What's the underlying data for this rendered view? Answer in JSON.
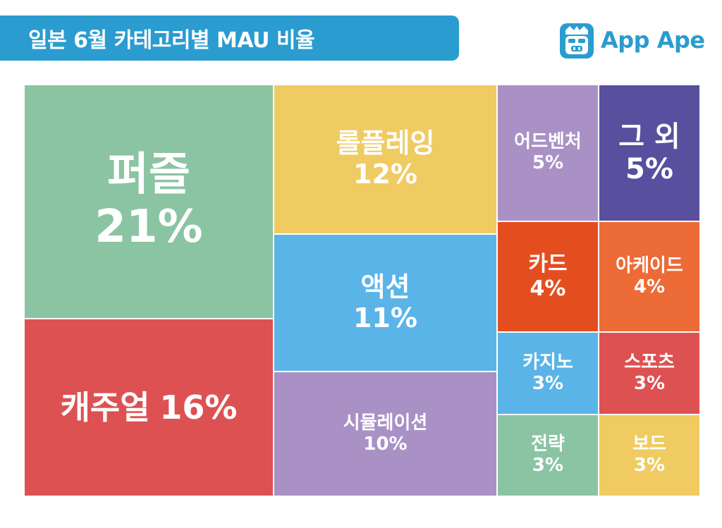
{
  "title": "일본 6월 카테고리별 MAU 비율",
  "logo": {
    "text": "App Ape",
    "icon": "ape-face-icon",
    "color": "#2a9ccf"
  },
  "chart_data": {
    "type": "treemap",
    "unit": "%",
    "cells": [
      {
        "name": "퍼즐",
        "value": 21,
        "label": "21%",
        "color": "#8bc4a3"
      },
      {
        "name": "캐주얼",
        "value": 16,
        "label": "16%",
        "color": "#de5152"
      },
      {
        "name": "롤플레잉",
        "value": 12,
        "label": "12%",
        "color": "#efcb62"
      },
      {
        "name": "액션",
        "value": 11,
        "label": "11%",
        "color": "#5ab4e8"
      },
      {
        "name": "시뮬레이션",
        "value": 10,
        "label": "10%",
        "color": "#a991c6"
      },
      {
        "name": "어드벤처",
        "value": 5,
        "label": "5%",
        "color": "#a991c6"
      },
      {
        "name": "그 외",
        "value": 5,
        "label": "5%",
        "color": "#584f9e"
      },
      {
        "name": "카드",
        "value": 4,
        "label": "4%",
        "color": "#e44e1f"
      },
      {
        "name": "아케이드",
        "value": 4,
        "label": "4%",
        "color": "#ec6b37"
      },
      {
        "name": "카지노",
        "value": 3,
        "label": "3%",
        "color": "#5ab4e8"
      },
      {
        "name": "스포츠",
        "value": 3,
        "label": "3%",
        "color": "#de5152"
      },
      {
        "name": "전략",
        "value": 3,
        "label": "3%",
        "color": "#8bc4a3"
      },
      {
        "name": "보드",
        "value": 3,
        "label": "3%",
        "color": "#efcb62"
      }
    ]
  }
}
